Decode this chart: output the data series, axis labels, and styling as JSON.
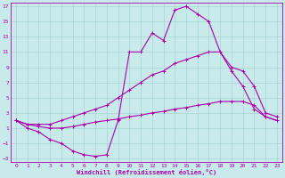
{
  "xlabel": "Windchill (Refroidissement éolien,°C)",
  "bg_color": "#c8eaea",
  "grid_color": "#a8d4d4",
  "line_color": "#aa00aa",
  "xlim": [
    -0.5,
    23.5
  ],
  "ylim": [
    -3.5,
    17.5
  ],
  "xticks": [
    0,
    1,
    2,
    3,
    4,
    5,
    6,
    7,
    8,
    9,
    10,
    11,
    12,
    13,
    14,
    15,
    16,
    17,
    18,
    19,
    20,
    21,
    22,
    23
  ],
  "yticks": [
    -3,
    -1,
    1,
    3,
    5,
    7,
    9,
    11,
    13,
    15,
    17
  ],
  "curve1_x": [
    0,
    1,
    2,
    3,
    4,
    5,
    6,
    7,
    8,
    9,
    10,
    11,
    12,
    13,
    14,
    15,
    16,
    17,
    18,
    19,
    20,
    21,
    22,
    23
  ],
  "curve1_y": [
    2.0,
    1.0,
    0.5,
    -0.5,
    -1.0,
    -2.0,
    -2.5,
    -2.7,
    -2.5,
    2.0,
    11.0,
    11.0,
    13.5,
    12.5,
    16.5,
    17.0,
    16.0,
    15.0,
    11.0,
    8.5,
    6.5,
    3.5,
    2.5,
    2.0
  ],
  "curve2_x": [
    0,
    1,
    2,
    3,
    4,
    5,
    6,
    7,
    8,
    9,
    10,
    11,
    12,
    13,
    14,
    15,
    16,
    17,
    18,
    19,
    20,
    21,
    22,
    23
  ],
  "curve2_y": [
    2.0,
    1.5,
    1.5,
    1.5,
    2.0,
    2.5,
    3.0,
    3.5,
    4.0,
    5.0,
    6.0,
    7.0,
    8.0,
    8.5,
    9.5,
    10.0,
    10.5,
    11.0,
    11.0,
    9.0,
    8.5,
    6.5,
    3.0,
    2.5
  ],
  "curve3_x": [
    0,
    1,
    2,
    3,
    4,
    5,
    6,
    7,
    8,
    9,
    10,
    11,
    12,
    13,
    14,
    15,
    16,
    17,
    18,
    19,
    20,
    21,
    22,
    23
  ],
  "curve3_y": [
    2.0,
    1.5,
    1.2,
    1.0,
    1.0,
    1.2,
    1.5,
    1.8,
    2.0,
    2.2,
    2.5,
    2.7,
    3.0,
    3.2,
    3.5,
    3.7,
    4.0,
    4.2,
    4.5,
    4.5,
    4.5,
    4.0,
    2.5,
    2.0
  ]
}
